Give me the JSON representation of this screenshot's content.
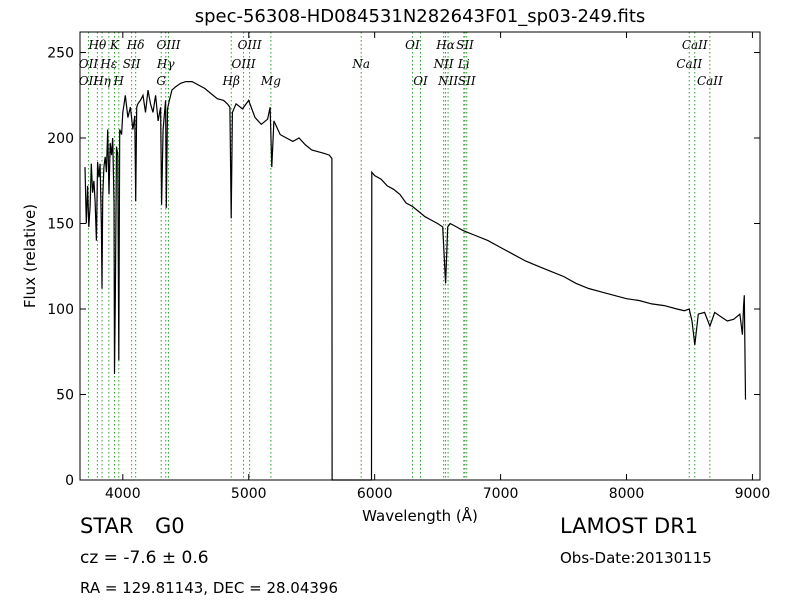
{
  "chart_data": {
    "type": "line",
    "title": "spec-56308-HD084531N282643F01_sp03-249.fits",
    "xlabel": "Wavelength (Å)",
    "ylabel": "Flux (relative)",
    "xlim": [
      3660,
      9060
    ],
    "ylim": [
      0,
      262
    ],
    "xticks": [
      4000,
      5000,
      6000,
      7000,
      8000,
      9000
    ],
    "yticks": [
      0,
      50,
      100,
      150,
      200,
      250
    ],
    "grid": false,
    "line_color": "#000000",
    "marker_color": "#2ca02c",
    "series": [
      {
        "x": [
          3700,
          3710,
          3720,
          3730,
          3740,
          3750,
          3760,
          3770,
          3780,
          3790,
          3800,
          3810,
          3820,
          3830,
          3835,
          3840,
          3850,
          3860,
          3870,
          3880,
          3890,
          3900,
          3910,
          3920,
          3930,
          3934,
          3940,
          3950,
          3960,
          3968,
          3975,
          3990,
          4000,
          4010,
          4020,
          4040,
          4060,
          4080,
          4095,
          4102,
          4110,
          4120,
          4140,
          4160,
          4180,
          4200,
          4220,
          4240,
          4260,
          4280,
          4300,
          4308,
          4320,
          4340,
          4345,
          4355,
          4370,
          4390,
          4420,
          4460,
          4500,
          4550,
          4600,
          4650,
          4700,
          4750,
          4800,
          4830,
          4850,
          4861,
          4870,
          4900,
          4950,
          5000,
          5050,
          5100,
          5150,
          5170,
          5183,
          5200,
          5250,
          5300,
          5350,
          5400,
          5450,
          5500,
          5550,
          5600,
          5640,
          5660,
          5662,
          5700,
          5800,
          5900,
          5960,
          5975,
          5977,
          6000,
          6050,
          6100,
          6150,
          6200,
          6250,
          6300,
          6350,
          6400,
          6450,
          6500,
          6540,
          6563,
          6580,
          6600,
          6650,
          6700,
          6800,
          6900,
          7000,
          7100,
          7200,
          7300,
          7400,
          7500,
          7600,
          7700,
          7800,
          7900,
          8000,
          8100,
          8200,
          8300,
          8400,
          8460,
          8498,
          8520,
          8542,
          8570,
          8620,
          8662,
          8700,
          8760,
          8800,
          8850,
          8900,
          8920,
          8930,
          8935,
          8945
        ],
        "y": [
          183,
          150,
          172,
          148,
          160,
          185,
          168,
          175,
          163,
          140,
          186,
          177,
          185,
          148,
          112,
          165,
          183,
          189,
          180,
          205,
          167,
          197,
          190,
          200,
          163,
          62,
          105,
          195,
          190,
          70,
          205,
          202,
          215,
          220,
          225,
          212,
          218,
          205,
          213,
          163,
          218,
          220,
          222,
          225,
          215,
          228,
          220,
          215,
          225,
          210,
          218,
          161,
          205,
          222,
          159,
          217,
          222,
          228,
          230,
          232,
          233,
          233,
          231,
          229,
          226,
          223,
          222,
          220,
          218,
          153,
          215,
          220,
          217,
          222,
          212,
          208,
          211,
          218,
          183,
          210,
          202,
          200,
          198,
          200,
          196,
          193,
          192,
          191,
          190,
          188,
          0,
          0,
          0,
          0,
          0,
          0,
          180,
          178,
          176,
          172,
          170,
          167,
          162,
          160,
          157,
          154,
          152,
          150,
          148,
          115,
          148,
          150,
          148,
          146,
          143,
          140,
          136,
          132,
          128,
          125,
          122,
          119,
          115,
          112,
          110,
          108,
          106,
          105,
          103,
          102,
          100,
          99,
          100,
          93,
          79,
          97,
          98,
          90,
          98,
          95,
          93,
          94,
          97,
          85,
          102,
          108,
          47
        ]
      }
    ],
    "annotations": [
      {
        "label": "OII",
        "x": 3727,
        "row": 2
      },
      {
        "label": "OII",
        "x": 3727,
        "row": 3
      },
      {
        "label": "Hθ",
        "x": 3798,
        "row": 1
      },
      {
        "label": "Hη",
        "x": 3835,
        "row": 3
      },
      {
        "label": "Hε",
        "x": 3889,
        "row": 2
      },
      {
        "label": "K",
        "x": 3934,
        "row": 1
      },
      {
        "label": "H",
        "x": 3968,
        "row": 3
      },
      {
        "label": "SII",
        "x": 4070,
        "row": 2
      },
      {
        "label": "Hδ",
        "x": 4102,
        "row": 1
      },
      {
        "label": "G",
        "x": 4305,
        "row": 3
      },
      {
        "label": "Hγ",
        "x": 4341,
        "row": 2
      },
      {
        "label": "OIII",
        "x": 4363,
        "row": 1
      },
      {
        "label": "Hβ",
        "x": 4861,
        "row": 3
      },
      {
        "label": "OIII",
        "x": 4959,
        "row": 2
      },
      {
        "label": "OIII",
        "x": 5007,
        "row": 1
      },
      {
        "label": "Mg",
        "x": 5176,
        "row": 3
      },
      {
        "label": "Na",
        "x": 5893,
        "row": 2
      },
      {
        "label": "OI",
        "x": 6300,
        "row": 1
      },
      {
        "label": "OI",
        "x": 6364,
        "row": 3
      },
      {
        "label": "NII",
        "x": 6548,
        "row": 2
      },
      {
        "label": "Hα",
        "x": 6563,
        "row": 1
      },
      {
        "label": "NII",
        "x": 6583,
        "row": 3
      },
      {
        "label": "Li",
        "x": 6708,
        "row": 2
      },
      {
        "label": "SII",
        "x": 6717,
        "row": 1
      },
      {
        "label": "SII",
        "x": 6731,
        "row": 3
      },
      {
        "label": "CaII",
        "x": 8498,
        "row": 2
      },
      {
        "label": "CaII",
        "x": 8542,
        "row": 1
      },
      {
        "label": "CaII",
        "x": 8662,
        "row": 3
      }
    ]
  },
  "info": {
    "object_class": "STAR",
    "subclass": "G0",
    "redshift": "cz = -7.6 ± 0.6",
    "coords": "RA = 129.81143, DEC = 28.04396",
    "survey": "LAMOST DR1",
    "obs_date": "Obs-Date:20130115"
  }
}
